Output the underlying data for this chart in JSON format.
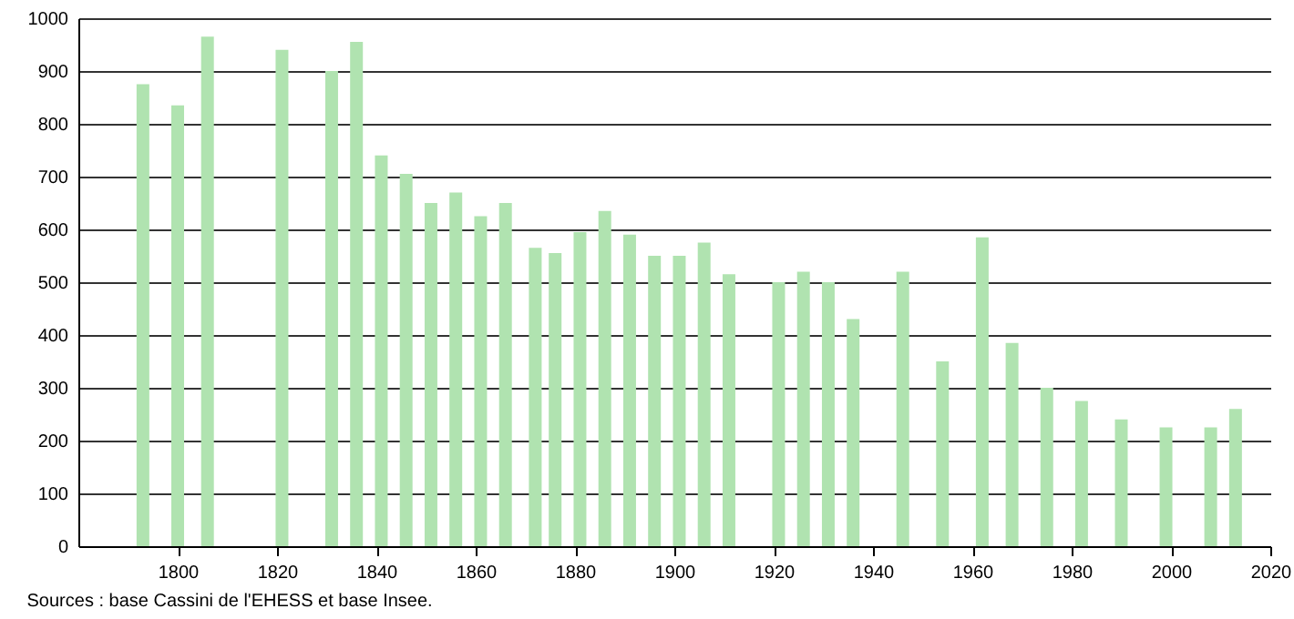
{
  "chart_data": {
    "type": "bar",
    "color": "#b0e3b0",
    "x": [
      1793,
      1800,
      1806,
      1821,
      1831,
      1836,
      1841,
      1846,
      1851,
      1856,
      1861,
      1866,
      1872,
      1876,
      1881,
      1886,
      1891,
      1896,
      1901,
      1906,
      1911,
      1921,
      1926,
      1931,
      1936,
      1946,
      1954,
      1962,
      1968,
      1975,
      1982,
      1990,
      1999,
      2008,
      2013
    ],
    "values": [
      875,
      835,
      965,
      940,
      900,
      955,
      740,
      705,
      650,
      670,
      625,
      650,
      565,
      555,
      595,
      635,
      590,
      550,
      550,
      575,
      515,
      500,
      520,
      500,
      430,
      520,
      350,
      585,
      385,
      300,
      275,
      240,
      225,
      225,
      260
    ],
    "xlim": [
      1780,
      2020
    ],
    "xticks": [
      1800,
      1820,
      1840,
      1860,
      1880,
      1900,
      1920,
      1940,
      1960,
      1980,
      2000,
      2020
    ],
    "ylim": [
      0,
      1000
    ],
    "yticks": [
      0,
      100,
      200,
      300,
      400,
      500,
      600,
      700,
      800,
      900,
      1000
    ],
    "grid": "y",
    "annotations": [
      "Sources : base Cassini de l'EHESS et base Insee."
    ]
  }
}
